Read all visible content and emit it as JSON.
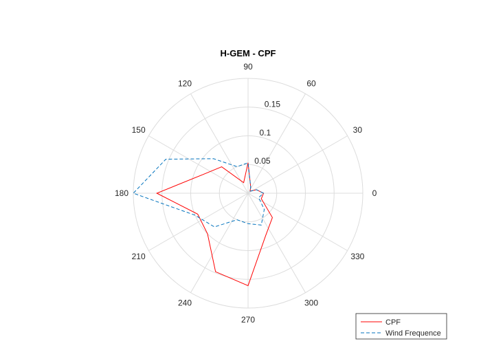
{
  "chart_data": {
    "type": "polar-line",
    "title": "H-GEM - CPF",
    "theta_ticks": [
      0,
      30,
      60,
      90,
      120,
      150,
      180,
      210,
      240,
      270,
      300,
      330
    ],
    "theta_tick_labels": [
      "0",
      "30",
      "60",
      "90",
      "120",
      "150",
      "180",
      "210",
      "240",
      "270",
      "300",
      "330"
    ],
    "r_ticks": [
      0.05,
      0.1,
      0.15
    ],
    "r_tick_labels": [
      "0.05",
      "0.1",
      "0.15"
    ],
    "rlim": [
      0,
      0.2
    ],
    "grid": true,
    "legend_position": "bottom-right",
    "theta": [
      0,
      22.5,
      45,
      67.5,
      90,
      112.5,
      135,
      157.5,
      180,
      202.5,
      225,
      247.5,
      270,
      292.5,
      315,
      337.5
    ],
    "series": [
      {
        "name": "CPF",
        "color": "#ff0000",
        "style": "solid",
        "r": [
          0.027,
          0.016,
          0.005,
          0.012,
          0.053,
          0.02,
          0.065,
          0.085,
          0.159,
          0.095,
          0.1,
          0.148,
          0.161,
          0.08,
          0.06,
          0.025
        ]
      },
      {
        "name": "Wind Frequence",
        "color": "#0072bd",
        "style": "dashed",
        "r": [
          0.027,
          0.016,
          0.005,
          0.012,
          0.053,
          0.05,
          0.085,
          0.155,
          0.2,
          0.1,
          0.083,
          0.05,
          0.053,
          0.06,
          0.04,
          0.02
        ]
      }
    ]
  },
  "legend": {
    "items": [
      {
        "label": "CPF",
        "color": "#ff0000",
        "dash": ""
      },
      {
        "label": "Wind Frequence",
        "color": "#0072bd",
        "dash": "5,3"
      }
    ]
  }
}
